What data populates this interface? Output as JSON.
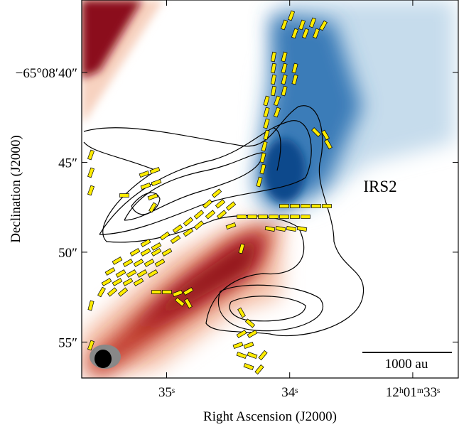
{
  "chart_data": {
    "type": "image",
    "x_label": "Right Ascension (J2000)",
    "y_label": "Declination (J2000)",
    "annotations": [
      "IRS2",
      "1000 au"
    ],
    "xlim": [
      35.69,
      32.63
    ],
    "xticks": [
      {
        "value": 35,
        "label": "35ˢ"
      },
      {
        "value": 34,
        "label": "34ˢ"
      },
      {
        "value": 33,
        "label": "12ʰ01ᵐ33ˢ"
      }
    ],
    "ylim": [
      35.97,
      57.0
    ],
    "yticks": [
      {
        "value": 40,
        "label": "−65°08′40″"
      },
      {
        "value": 45,
        "label": "45″"
      },
      {
        "value": 50,
        "label": "50″"
      },
      {
        "value": 55,
        "label": "55″"
      }
    ]
  }
}
